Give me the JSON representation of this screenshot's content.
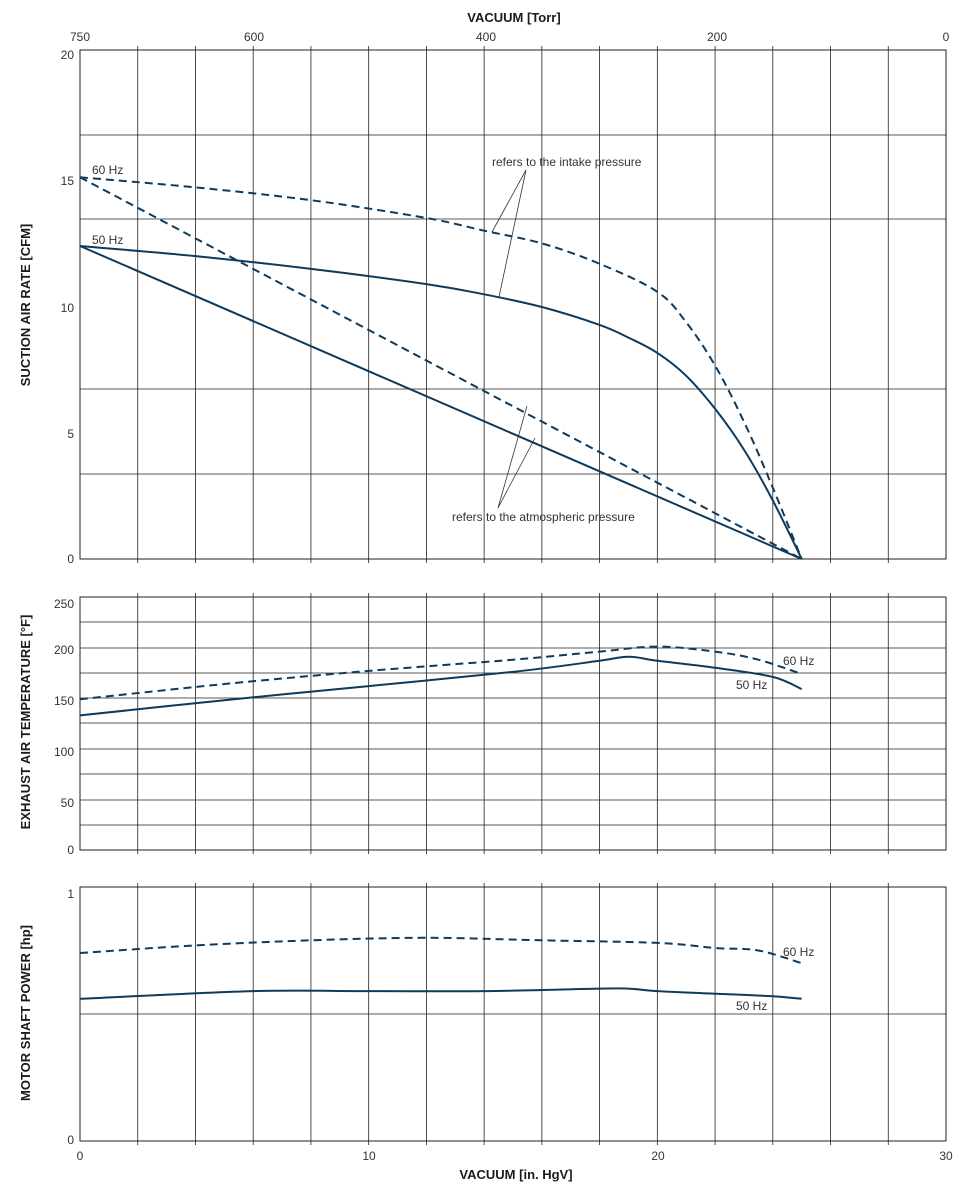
{
  "colors": {
    "curve": "#0e3a5c",
    "grid": "#222222",
    "text": "#333333"
  },
  "top_axis": {
    "label": "VACUUM [Torr]",
    "ticks": [
      "750",
      "600",
      "400",
      "200",
      "0"
    ]
  },
  "bottom_axis": {
    "label": "VACUUM [in. HgV]",
    "ticks": [
      "0",
      "10",
      "20",
      "30"
    ]
  },
  "chart_data": [
    {
      "type": "line",
      "ylabel": "SUCTION AIR RATE [CFM]",
      "xlabel": "VACUUM [in. HgV]",
      "xlim": [
        0,
        30
      ],
      "ylim": [
        0,
        20
      ],
      "yticks": [
        "20",
        "15",
        "10",
        "5",
        "0"
      ],
      "grid": true,
      "series": [
        {
          "name": "60 Hz",
          "style": "dashed",
          "x": [
            0,
            4,
            8,
            12,
            14,
            16,
            18,
            20,
            21,
            22,
            23,
            24,
            25
          ],
          "y": [
            15,
            14.6,
            14.1,
            13.4,
            12.9,
            12.4,
            11.6,
            10.5,
            9.3,
            7.6,
            5.4,
            2.8,
            0
          ]
        },
        {
          "style": "dashed",
          "x": [
            0,
            25
          ],
          "y": [
            15,
            0
          ]
        },
        {
          "name": "50 Hz",
          "x": [
            0,
            4,
            8,
            12,
            14,
            16,
            18,
            19,
            20,
            21,
            22,
            23,
            24,
            25
          ],
          "y": [
            12.3,
            11.9,
            11.4,
            10.8,
            10.4,
            9.9,
            9.2,
            8.7,
            8.1,
            7.2,
            5.9,
            4.3,
            2.3,
            0
          ]
        },
        {
          "x": [
            0,
            25
          ],
          "y": [
            12.3,
            0
          ]
        }
      ],
      "annotations": [
        "refers to the intake pressure",
        "refers to the atmospheric pressure"
      ]
    },
    {
      "type": "line",
      "ylabel": "EXHAUST AIR TEMPERATURE [°F]",
      "xlabel": "VACUUM [in. HgV]",
      "xlim": [
        0,
        30
      ],
      "ylim": [
        0,
        250
      ],
      "yticks": [
        "250",
        "200",
        "150",
        "100",
        "50",
        "0"
      ],
      "grid": true,
      "series": [
        {
          "name": "60 Hz",
          "style": "dashed",
          "x": [
            0,
            5,
            10,
            15,
            18,
            20,
            22,
            23.5,
            25
          ],
          "y": [
            149,
            164,
            177,
            188,
            196,
            201,
            196,
            188,
            174
          ]
        },
        {
          "name": "50 Hz",
          "x": [
            0,
            5,
            10,
            15,
            18,
            19,
            20,
            22,
            24,
            25
          ],
          "y": [
            133,
            148,
            162,
            176,
            187,
            191,
            187,
            180,
            171,
            159
          ]
        }
      ]
    },
    {
      "type": "line",
      "ylabel": "MOTOR SHAFT POWER [hp]",
      "xlabel": "VACUUM [in. HgV]",
      "xlim": [
        0,
        30
      ],
      "ylim": [
        0,
        1
      ],
      "yticks": [
        "1",
        "0"
      ],
      "grid": true,
      "series": [
        {
          "name": "60 Hz",
          "style": "dashed",
          "x": [
            0,
            4,
            8,
            12,
            16,
            20,
            22,
            23.5,
            25
          ],
          "y": [
            0.74,
            0.77,
            0.79,
            0.8,
            0.79,
            0.78,
            0.76,
            0.75,
            0.7
          ]
        },
        {
          "name": "50 Hz",
          "x": [
            0,
            6,
            10,
            14,
            18,
            19,
            20,
            22,
            24,
            25
          ],
          "y": [
            0.56,
            0.59,
            0.59,
            0.59,
            0.6,
            0.6,
            0.59,
            0.58,
            0.57,
            0.56
          ]
        }
      ]
    }
  ],
  "labels": {
    "hz60": "60 Hz",
    "hz50": "50 Hz",
    "intake_note": "refers to the intake pressure",
    "atmospheric_note": "refers to the atmospheric pressure"
  }
}
